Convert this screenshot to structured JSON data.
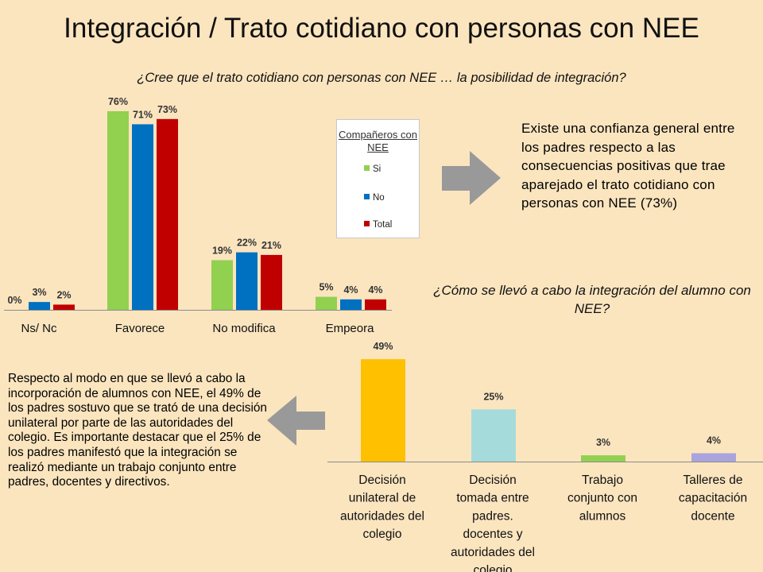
{
  "title": "Integración / Trato cotidiano con personas con NEE",
  "question1": "¿Cree que el trato cotidiano con personas con NEE … la posibilidad de integración?",
  "question2": "¿Cómo se llevó a cabo la integración del alumno con NEE?",
  "text_right": "Existe una confianza general entre los padres respecto a las consecuencias positivas que trae aparejado el trato cotidiano con personas con NEE (73%)",
  "text_left": "Respecto al modo en que se llevó a cabo la incorporación de alumnos con NEE, el 49% de los padres sostuvo que se trató de una decisión unilateral por parte de las autoridades del colegio.  Es importante destacar que el 25% de los padres manifestó que la integración se realizó mediante un trabajo conjunto entre padres, docentes y directivos.",
  "legend": {
    "title": "Compañeros con NEE",
    "items": [
      {
        "label": "Si",
        "color": "#92d050"
      },
      {
        "label": "No",
        "color": "#0070c0"
      },
      {
        "label": "Total",
        "color": "#c00000"
      }
    ]
  },
  "colors": {
    "background": "#fbe5bf",
    "arrow": "#999999"
  },
  "chart_data": [
    {
      "type": "bar",
      "categories": [
        "Ns/ Nc",
        "Favorece",
        "No modifica",
        "Empeora"
      ],
      "series": [
        {
          "name": "Si",
          "color": "#92d050",
          "values": [
            0,
            76,
            19,
            5
          ],
          "labels": [
            "0%",
            "76%",
            "19%",
            "5%"
          ]
        },
        {
          "name": "No",
          "color": "#0070c0",
          "values": [
            3,
            71,
            22,
            4
          ],
          "labels": [
            "3%",
            "71%",
            "22%",
            "4%"
          ]
        },
        {
          "name": "Total",
          "color": "#c00000",
          "values": [
            2,
            73,
            21,
            4
          ],
          "labels": [
            "2%",
            "73%",
            "21%",
            "4%"
          ]
        }
      ],
      "ylim": [
        0,
        100
      ],
      "legend": "inside-right",
      "grid": false
    },
    {
      "type": "bar",
      "categories": [
        "Decisión unilateral de autoridades del colegio",
        "Decisión tomada entre padres. docentes y autoridades del colegio",
        "Trabajo conjunto con alumnos",
        "Talleres de capacitación docente"
      ],
      "category_lines": [
        [
          "Decisión",
          "unilateral de",
          "autoridades del",
          "colegio"
        ],
        [
          "Decisión",
          "tomada entre",
          "padres.",
          "docentes y",
          "autoridades del",
          "colegio"
        ],
        [
          "Trabajo",
          "conjunto con",
          "alumnos"
        ],
        [
          "Talleres de",
          "capacitación",
          "docente"
        ]
      ],
      "values": [
        49,
        25,
        3,
        4
      ],
      "labels": [
        "49%",
        "25%",
        "3%",
        "4%"
      ],
      "colors": [
        "#ffc000",
        "#a6dbdc",
        "#92d050",
        "#a9a5dc"
      ],
      "ylim": [
        0,
        100
      ],
      "grid": false
    }
  ]
}
